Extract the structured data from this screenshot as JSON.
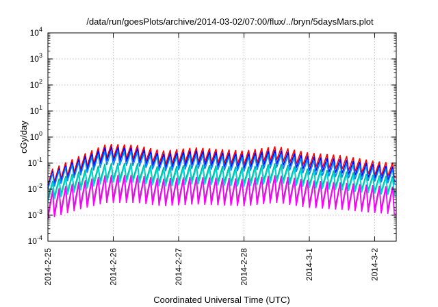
{
  "title": "/data/run/goesPlots/archive/2014-03-02/07:00/flux/../bryn/5daysMars.plot",
  "xlabel": "Coordinated Universal Time (UTC)",
  "ylabel": "cGy/day",
  "y_tick_labels": [
    {
      "base": "10",
      "exp": "-4"
    },
    {
      "base": "10",
      "exp": "-3"
    },
    {
      "base": "10",
      "exp": "-2"
    },
    {
      "base": "10",
      "exp": "-1"
    },
    {
      "base": "10",
      "exp": "0"
    },
    {
      "base": "10",
      "exp": "1"
    },
    {
      "base": "10",
      "exp": "2"
    },
    {
      "base": "10",
      "exp": "3"
    },
    {
      "base": "10",
      "exp": "4"
    }
  ],
  "x_tick_labels": [
    "2014-2-25",
    "2014-2-26",
    "2014-2-27",
    "2014-2-28",
    "2014-3-1",
    "2014-3-2"
  ],
  "chart_data": {
    "type": "line",
    "title": "/data/run/goesPlots/archive/2014-03-02/07:00/flux/../bryn/5daysMars.plot",
    "xlabel": "Coordinated Universal Time (UTC)",
    "ylabel": "cGy/day",
    "x_unit": "days since 2014-02-25 00:00 UTC",
    "xlim": [
      0,
      5.33
    ],
    "y_scale": "log",
    "ylim": [
      0.0001,
      10000
    ],
    "grid": true,
    "x_ticks": [
      0,
      1,
      2,
      3,
      4,
      5
    ],
    "sawtooth": {
      "period_days": 0.1,
      "peak_fraction": 0.72,
      "x_start": 0.0,
      "x_end": 5.33
    },
    "envelope_x": [
      0.0,
      0.5,
      0.9,
      1.35,
      1.75,
      2.25,
      3.0,
      3.5,
      4.0,
      4.5,
      5.0,
      5.33
    ],
    "series": [
      {
        "color": "#ff0000",
        "peak": [
          0.05,
          0.2,
          0.55,
          0.5,
          0.3,
          0.4,
          0.3,
          0.45,
          0.25,
          0.2,
          0.12,
          0.1
        ],
        "ratio": 3.5
      },
      {
        "color": "#0000ff",
        "peak": [
          0.04,
          0.15,
          0.42,
          0.38,
          0.22,
          0.3,
          0.22,
          0.32,
          0.18,
          0.14,
          0.09,
          0.07
        ],
        "ratio": 3.5
      },
      {
        "color": "#0088ff",
        "peak": [
          0.035,
          0.12,
          0.3,
          0.28,
          0.17,
          0.22,
          0.17,
          0.24,
          0.13,
          0.1,
          0.07,
          0.055
        ],
        "ratio": 3.6
      },
      {
        "color": "#00b890",
        "peak": [
          0.018,
          0.05,
          0.1,
          0.1,
          0.07,
          0.09,
          0.07,
          0.1,
          0.06,
          0.05,
          0.035,
          0.03
        ],
        "ratio": 4.2
      },
      {
        "color": "#00d8d8",
        "peak": [
          0.015,
          0.04,
          0.08,
          0.08,
          0.055,
          0.07,
          0.055,
          0.08,
          0.05,
          0.04,
          0.03,
          0.025
        ],
        "ratio": 4.5
      },
      {
        "color": "#b030b0",
        "peak": [
          0.008,
          0.02,
          0.035,
          0.035,
          0.025,
          0.03,
          0.025,
          0.035,
          0.022,
          0.018,
          0.014,
          0.012
        ],
        "ratio": 8
      },
      {
        "color": "#ff00ff",
        "peak": [
          0.007,
          0.017,
          0.03,
          0.03,
          0.022,
          0.026,
          0.022,
          0.03,
          0.019,
          0.016,
          0.012,
          0.011
        ],
        "ratio": 10
      }
    ]
  }
}
